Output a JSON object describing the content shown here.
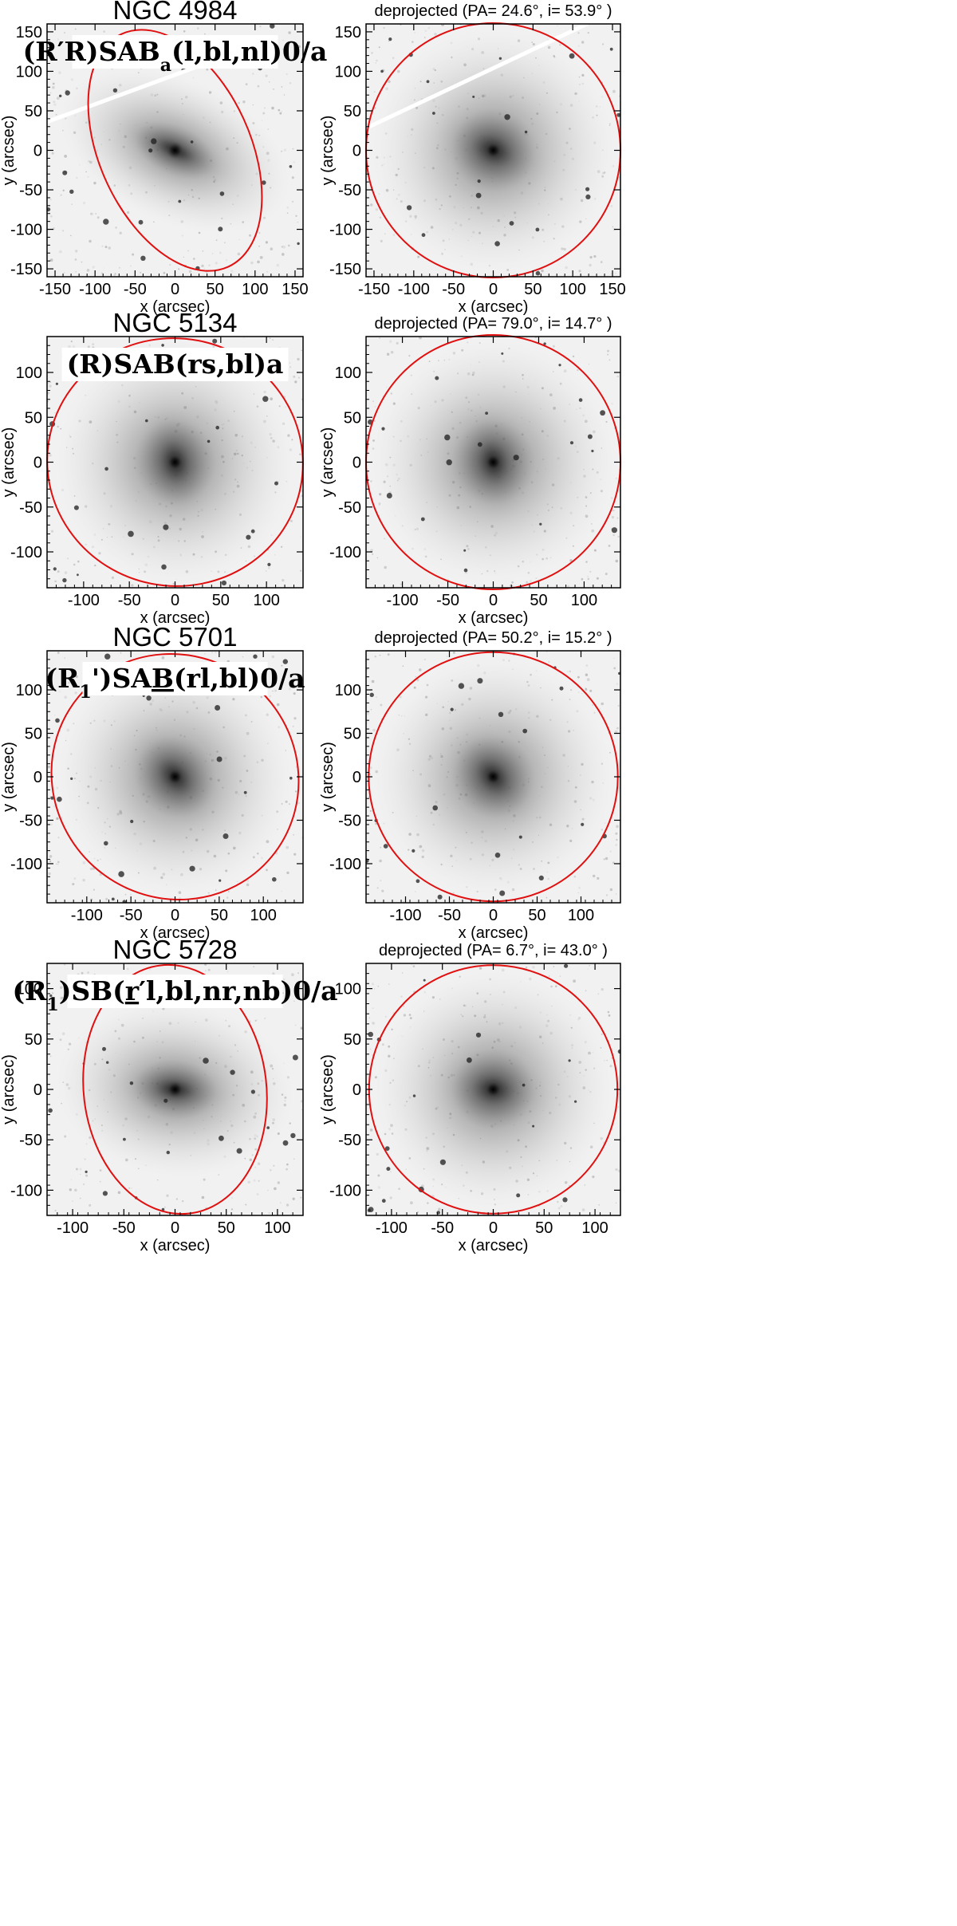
{
  "figure": {
    "axis_color": "#000000",
    "ellipse_color": "#e01010",
    "label_box_color": "#ffffff",
    "rows": [
      {
        "galaxy": "NGC 4984",
        "morphology": "(R′R)SABa(l,bl,nl)0/a",
        "morph_parts": [
          {
            "t": "(R′R)SAB",
            "sub": false,
            "u": false
          },
          {
            "t": "a",
            "sub": true,
            "u": false
          },
          {
            "t": "(l,bl,nl)0/a",
            "sub": false,
            "u": false
          }
        ],
        "deprojected": "deprojected  (PA= 24.6°, i= 53.9° )",
        "range": 160,
        "ticks": [
          -150,
          -100,
          -50,
          0,
          50,
          100,
          150
        ],
        "ellipse": {
          "pa_deg": 24.6,
          "incl_deg": 53.9,
          "major_arcsec": 160
        },
        "streak": {
          "x1": -160,
          "y1": 36,
          "x2": 60,
          "y2": 118
        }
      },
      {
        "galaxy": "NGC 5134",
        "morphology": "(R)SAB(rs,bl)a",
        "morph_parts": [
          {
            "t": "(R)SAB(rs,bl)a",
            "sub": false,
            "u": false
          }
        ],
        "deprojected": "deprojected  (PA= 79.0°, i= 14.7° )",
        "range": 140,
        "ticks": [
          -100,
          -50,
          0,
          50,
          100
        ],
        "ellipse": {
          "pa_deg": 79.0,
          "incl_deg": 14.7,
          "major_arcsec": 140
        },
        "streak": null
      },
      {
        "galaxy": "NGC 5701",
        "morphology": "(R1')SAB(rl,bl)0/a",
        "morph_parts": [
          {
            "t": "(R",
            "sub": false,
            "u": false
          },
          {
            "t": "1",
            "sub": true,
            "u": false
          },
          {
            "t": "')SA",
            "sub": false,
            "u": false
          },
          {
            "t": "B",
            "sub": false,
            "u": true
          },
          {
            "t": "(rl,bl)0/a",
            "sub": false,
            "u": false
          }
        ],
        "deprojected": "deprojected  (PA= 50.2°, i= 15.2° )",
        "range": 145,
        "ticks": [
          -100,
          -50,
          0,
          50,
          100
        ],
        "ellipse": {
          "pa_deg": 50.2,
          "incl_deg": 15.2,
          "major_arcsec": 142
        },
        "streak": null
      },
      {
        "galaxy": "NGC 5728",
        "morphology": "(R1)SB(r′l,bl,nr,nb)0/a",
        "morph_parts": [
          {
            "t": "(R",
            "sub": false,
            "u": false
          },
          {
            "t": "1",
            "sub": true,
            "u": false
          },
          {
            "t": ")SB(",
            "sub": false,
            "u": false
          },
          {
            "t": "r",
            "sub": false,
            "u": true
          },
          {
            "t": "′l,bl,nr,nb)0/a",
            "sub": false,
            "u": false
          }
        ],
        "deprojected": "deprojected  (PA= 6.7°, i= 43.0° )",
        "range": 125,
        "ticks": [
          -100,
          -50,
          0,
          50,
          100
        ],
        "ellipse": {
          "pa_deg": 6.7,
          "incl_deg": 43.0,
          "major_arcsec": 122
        },
        "streak": null
      }
    ],
    "xlabel": "x (arcsec)",
    "ylabel": "y (arcsec)"
  }
}
